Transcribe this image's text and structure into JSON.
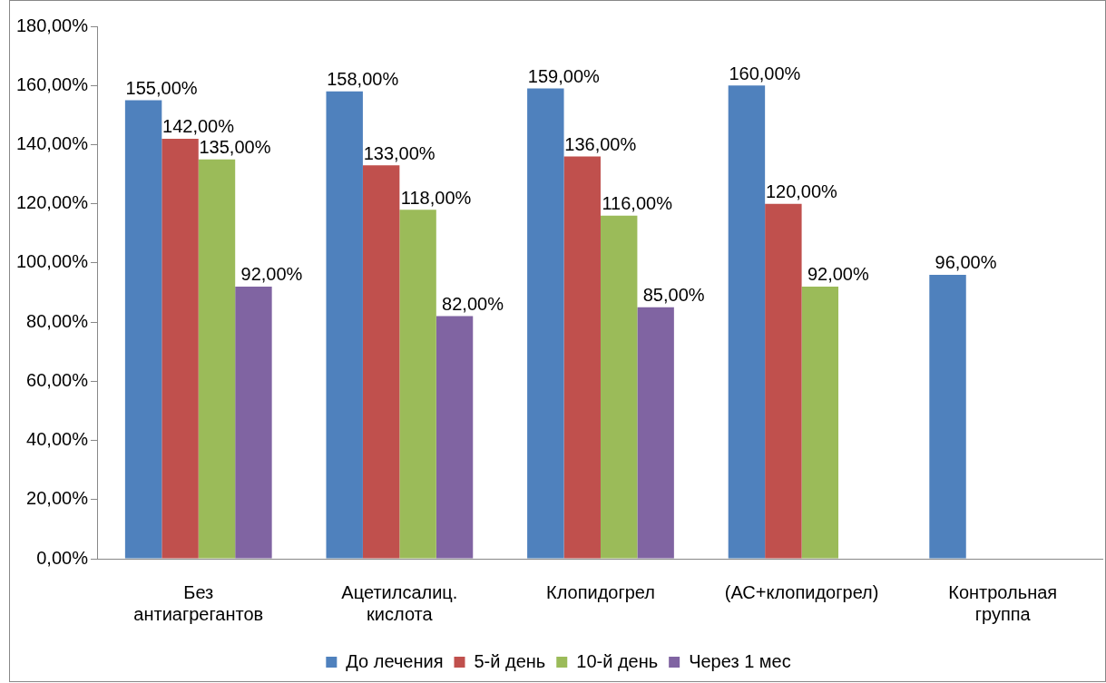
{
  "chart_data": {
    "type": "bar",
    "categories": [
      "Без антиагрегантов",
      "Ацетилсалиц. кислота",
      "Клопидогрел",
      "(АС+клопидогрел)",
      "Контрольная группа"
    ],
    "series": [
      {
        "name": "До лечения",
        "color": "#4f81bd",
        "values": [
          155,
          158,
          159,
          160,
          96
        ],
        "value_labels": [
          "155,00%",
          "158,00%",
          "159,00%",
          "160,00%",
          "96,00%"
        ]
      },
      {
        "name": "5-й день",
        "color": "#c0504d",
        "values": [
          142,
          133,
          136,
          120,
          null
        ],
        "value_labels": [
          "142,00%",
          "133,00%",
          "136,00%",
          "120,00%",
          null
        ]
      },
      {
        "name": "10-й день",
        "color": "#9bbb59",
        "values": [
          135,
          118,
          116,
          92,
          null
        ],
        "value_labels": [
          "135,00%",
          "118,00%",
          "116,00%",
          "92,00%",
          null
        ]
      },
      {
        "name": "Через 1 мес",
        "color": "#8064a2",
        "values": [
          92,
          82,
          85,
          null,
          null
        ],
        "value_labels": [
          "92,00%",
          "82,00%",
          "85,00%",
          null,
          null
        ]
      }
    ],
    "ylim": [
      0,
      180
    ],
    "yticks": [
      {
        "value": 0,
        "label": "0,00%"
      },
      {
        "value": 20,
        "label": "20,00%"
      },
      {
        "value": 40,
        "label": "40,00%"
      },
      {
        "value": 60,
        "label": "60,00%"
      },
      {
        "value": 80,
        "label": "80,00%"
      },
      {
        "value": 100,
        "label": "100,00%"
      },
      {
        "value": 120,
        "label": "120,00%"
      },
      {
        "value": 140,
        "label": "140,00%"
      },
      {
        "value": 160,
        "label": "160,00%"
      },
      {
        "value": 180,
        "label": "180,00%"
      }
    ],
    "grid": false,
    "legend": "bottom"
  }
}
